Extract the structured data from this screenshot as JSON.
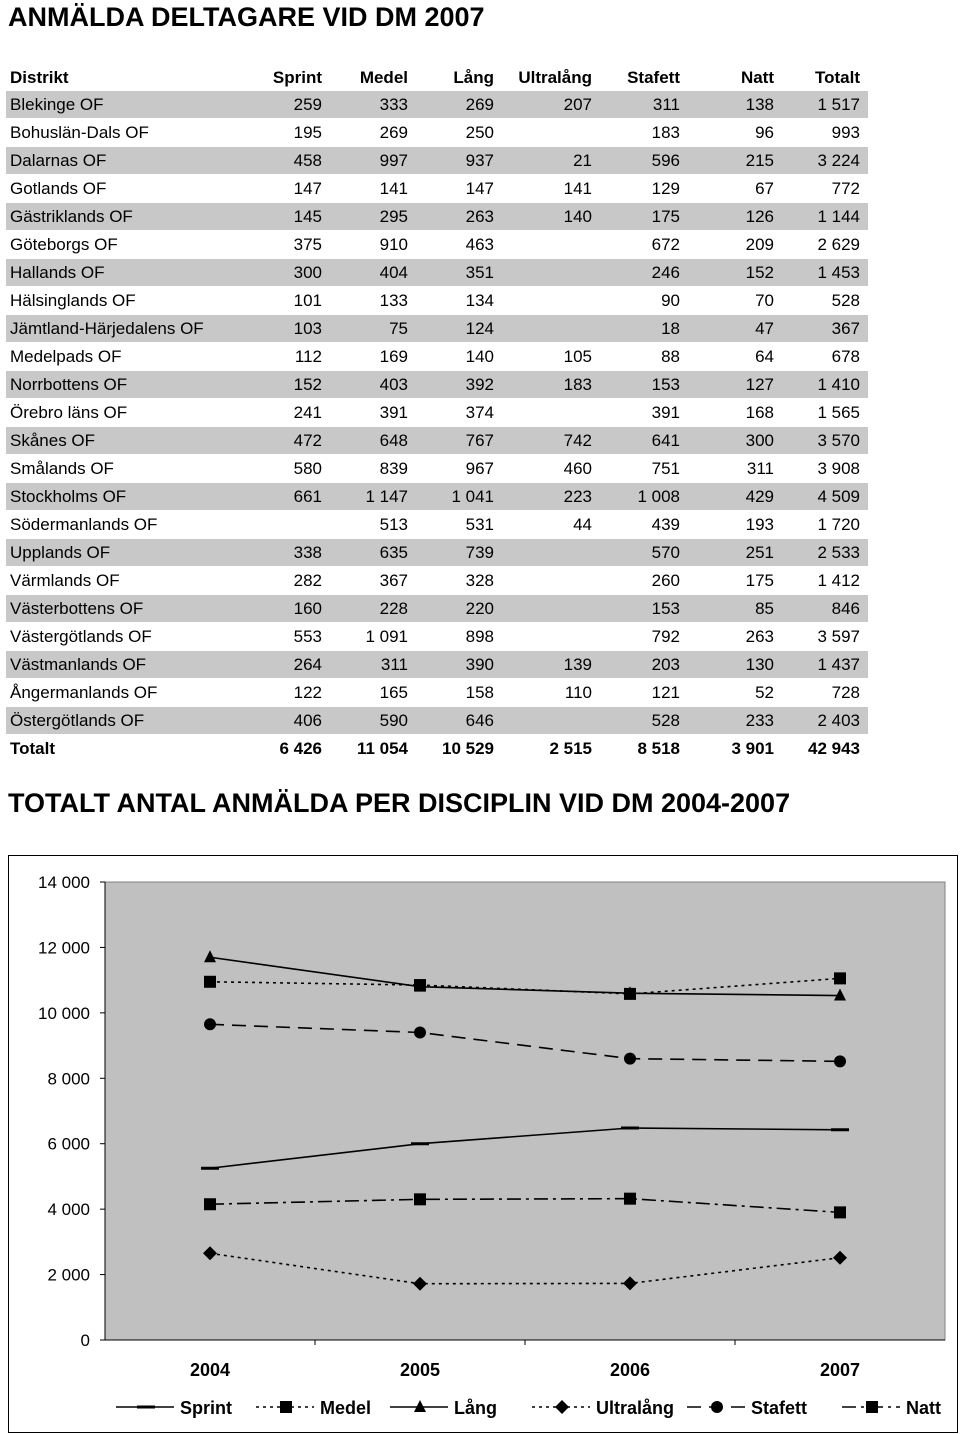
{
  "page": {
    "title_table": "ANMÄLDA DELTAGARE VID DM 2007",
    "title_chart": "TOTALT ANTAL ANMÄLDA PER DISCIPLIN VID DM 2004-2007"
  },
  "table": {
    "headers": [
      "Distrikt",
      "Sprint",
      "Medel",
      "Lång",
      "Ultralång",
      "Stafett",
      "Natt",
      "Totalt"
    ],
    "rows": [
      [
        "Blekinge OF",
        "259",
        "333",
        "269",
        "207",
        "311",
        "138",
        "1 517"
      ],
      [
        "Bohuslän-Dals OF",
        "195",
        "269",
        "250",
        "",
        "183",
        "96",
        "993"
      ],
      [
        "Dalarnas OF",
        "458",
        "997",
        "937",
        "21",
        "596",
        "215",
        "3 224"
      ],
      [
        "Gotlands OF",
        "147",
        "141",
        "147",
        "141",
        "129",
        "67",
        "772"
      ],
      [
        "Gästriklands OF",
        "145",
        "295",
        "263",
        "140",
        "175",
        "126",
        "1 144"
      ],
      [
        "Göteborgs OF",
        "375",
        "910",
        "463",
        "",
        "672",
        "209",
        "2 629"
      ],
      [
        "Hallands OF",
        "300",
        "404",
        "351",
        "",
        "246",
        "152",
        "1 453"
      ],
      [
        "Hälsinglands OF",
        "101",
        "133",
        "134",
        "",
        "90",
        "70",
        "528"
      ],
      [
        "Jämtland-Härjedalens OF",
        "103",
        "75",
        "124",
        "",
        "18",
        "47",
        "367"
      ],
      [
        "Medelpads OF",
        "112",
        "169",
        "140",
        "105",
        "88",
        "64",
        "678"
      ],
      [
        "Norrbottens OF",
        "152",
        "403",
        "392",
        "183",
        "153",
        "127",
        "1 410"
      ],
      [
        "Örebro läns OF",
        "241",
        "391",
        "374",
        "",
        "391",
        "168",
        "1 565"
      ],
      [
        "Skånes OF",
        "472",
        "648",
        "767",
        "742",
        "641",
        "300",
        "3 570"
      ],
      [
        "Smålands OF",
        "580",
        "839",
        "967",
        "460",
        "751",
        "311",
        "3 908"
      ],
      [
        "Stockholms OF",
        "661",
        "1 147",
        "1 041",
        "223",
        "1 008",
        "429",
        "4 509"
      ],
      [
        "Södermanlands OF",
        "",
        "513",
        "531",
        "44",
        "439",
        "193",
        "1 720"
      ],
      [
        "Upplands OF",
        "338",
        "635",
        "739",
        "",
        "570",
        "251",
        "2 533"
      ],
      [
        "Värmlands OF",
        "282",
        "367",
        "328",
        "",
        "260",
        "175",
        "1 412"
      ],
      [
        "Västerbottens OF",
        "160",
        "228",
        "220",
        "",
        "153",
        "85",
        "846"
      ],
      [
        "Västergötlands OF",
        "553",
        "1 091",
        "898",
        "",
        "792",
        "263",
        "3 597"
      ],
      [
        "Västmanlands OF",
        "264",
        "311",
        "390",
        "139",
        "203",
        "130",
        "1 437"
      ],
      [
        "Ångermanlands OF",
        "122",
        "165",
        "158",
        "110",
        "121",
        "52",
        "728"
      ],
      [
        "Östergötlands OF",
        "406",
        "590",
        "646",
        "",
        "528",
        "233",
        "2 403"
      ]
    ],
    "total": [
      "Totalt",
      "6 426",
      "11 054",
      "10 529",
      "2 515",
      "8 518",
      "3 901",
      "42 943"
    ]
  },
  "chart_data": {
    "type": "line",
    "title": "TOTALT ANTAL ANMÄLDA PER DISCIPLIN VID DM 2004-2007",
    "x": [
      "2004",
      "2005",
      "2006",
      "2007"
    ],
    "ylim": [
      0,
      14000
    ],
    "yticks": [
      0,
      2000,
      4000,
      6000,
      8000,
      10000,
      12000,
      14000
    ],
    "ytick_labels": [
      "0",
      "2 000",
      "4 000",
      "6 000",
      "8 000",
      "10 000",
      "12 000",
      "14 000"
    ],
    "grid": false,
    "plot_background": "#c0c0c0",
    "legend_position": "bottom",
    "series": [
      {
        "name": "Sprint",
        "values": [
          5250,
          6000,
          6480,
          6426
        ],
        "marker": "dash",
        "line": "solid"
      },
      {
        "name": "Medel",
        "values": [
          10950,
          10850,
          10580,
          11054
        ],
        "marker": "square",
        "line": "dotted"
      },
      {
        "name": "Lång",
        "values": [
          11700,
          10800,
          10600,
          10529
        ],
        "marker": "triangle",
        "line": "solid"
      },
      {
        "name": "Ultralång",
        "values": [
          2650,
          1720,
          1730,
          2515
        ],
        "marker": "diamond",
        "line": "dotted"
      },
      {
        "name": "Stafett",
        "values": [
          9650,
          9400,
          8600,
          8518
        ],
        "marker": "circle",
        "line": "dashed"
      },
      {
        "name": "Natt",
        "values": [
          4150,
          4300,
          4320,
          3901
        ],
        "marker": "square",
        "line": "dashdot"
      }
    ]
  }
}
